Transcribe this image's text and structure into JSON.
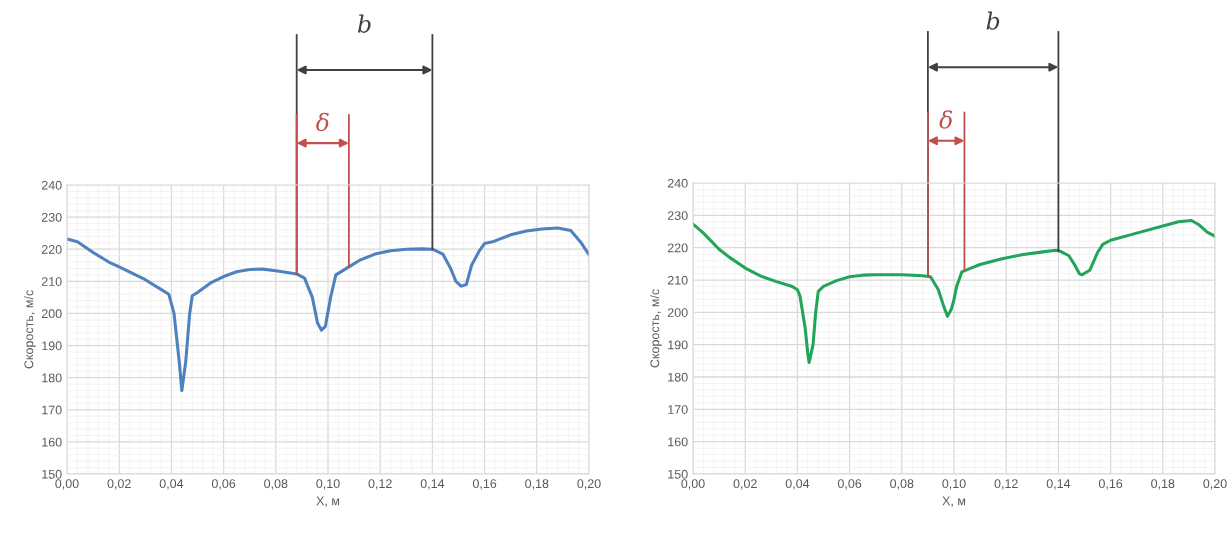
{
  "chart_data": [
    {
      "type": "line",
      "xlabel": "X, м",
      "ylabel": "Скорость, м/с",
      "grid": true,
      "legend": false,
      "marker": "none",
      "line_style": "solid",
      "xlim": [
        0,
        0.2
      ],
      "ylim": [
        150,
        240
      ],
      "xticks": [
        {
          "value": 0,
          "label": "0,00"
        },
        {
          "value": 0.02,
          "label": "0,02"
        },
        {
          "value": 0.04,
          "label": "0,04"
        },
        {
          "value": 0.06,
          "label": "0,06"
        },
        {
          "value": 0.08,
          "label": "0,08"
        },
        {
          "value": 0.1,
          "label": "0,10"
        },
        {
          "value": 0.12,
          "label": "0,12"
        },
        {
          "value": 0.14,
          "label": "0,14"
        },
        {
          "value": 0.16,
          "label": "0,16"
        },
        {
          "value": 0.18,
          "label": "0,18"
        },
        {
          "value": 0.2,
          "label": "0,20"
        }
      ],
      "yticks": [
        150,
        160,
        170,
        180,
        190,
        200,
        210,
        220,
        230,
        240
      ],
      "ref_lines": [
        {
          "axis": "x",
          "value": 0.088,
          "color": "#404040"
        },
        {
          "axis": "x",
          "value": 0.14,
          "label": "b",
          "color": "#404040"
        },
        {
          "axis": "x",
          "value": 0.088,
          "color": "#c0504d"
        },
        {
          "axis": "x",
          "value": 0.108,
          "label": "δ",
          "color": "#c0504d"
        }
      ],
      "series": [
        {
          "color": "#4f81bd",
          "x": [
            0,
            0.004,
            0.01,
            0.016,
            0.02,
            0.03,
            0.036,
            0.039,
            0.041,
            0.043,
            0.044,
            0.0455,
            0.047,
            0.048,
            0.05,
            0.055,
            0.06,
            0.065,
            0.07,
            0.075,
            0.08,
            0.085,
            0.088,
            0.091,
            0.094,
            0.096,
            0.0975,
            0.099,
            0.101,
            0.103,
            0.106,
            0.108,
            0.112,
            0.118,
            0.124,
            0.13,
            0.136,
            0.14,
            0.144,
            0.147,
            0.149,
            0.151,
            0.153,
            0.155,
            0.158,
            0.16,
            0.163,
            0.17,
            0.176,
            0.182,
            0.188,
            0.193,
            0.197,
            0.2
          ],
          "values": [
            223.2,
            222.3,
            219,
            216,
            214.5,
            210.5,
            207.5,
            206,
            200,
            185,
            176,
            185,
            200,
            205.5,
            206.5,
            209.5,
            211.5,
            213,
            213.7,
            213.8,
            213.3,
            212.7,
            212.3,
            211,
            205,
            197,
            194.8,
            196,
            205,
            212,
            213.5,
            214.5,
            216.5,
            218.5,
            219.5,
            220,
            220.1,
            220,
            218.5,
            214,
            210,
            208.5,
            209,
            215,
            219.5,
            221.8,
            222.3,
            224.5,
            225.7,
            226.3,
            226.6,
            225.8,
            222,
            218.3
          ]
        }
      ]
    },
    {
      "type": "line",
      "xlabel": "X, м",
      "ylabel": "Скорость, м/с",
      "grid": true,
      "legend": false,
      "marker": "none",
      "line_style": "solid",
      "xlim": [
        0,
        0.2
      ],
      "ylim": [
        150,
        240
      ],
      "xticks": [
        {
          "value": 0,
          "label": "0,00"
        },
        {
          "value": 0.02,
          "label": "0,02"
        },
        {
          "value": 0.04,
          "label": "0,04"
        },
        {
          "value": 0.06,
          "label": "0,06"
        },
        {
          "value": 0.08,
          "label": "0,08"
        },
        {
          "value": 0.1,
          "label": "0,10"
        },
        {
          "value": 0.12,
          "label": "0,12"
        },
        {
          "value": 0.14,
          "label": "0,14"
        },
        {
          "value": 0.16,
          "label": "0,16"
        },
        {
          "value": 0.18,
          "label": "0,18"
        },
        {
          "value": 0.2,
          "label": "0,20"
        }
      ],
      "yticks": [
        150,
        160,
        170,
        180,
        190,
        200,
        210,
        220,
        230,
        240
      ],
      "ref_lines": [
        {
          "axis": "x",
          "value": 0.09,
          "color": "#404040"
        },
        {
          "axis": "x",
          "value": 0.14,
          "label": "b",
          "color": "#404040"
        },
        {
          "axis": "x",
          "value": 0.09,
          "color": "#c0504d"
        },
        {
          "axis": "x",
          "value": 0.104,
          "label": "δ",
          "color": "#c0504d"
        }
      ],
      "series": [
        {
          "color": "#22a55a",
          "x": [
            0,
            0.004,
            0.01,
            0.014,
            0.02,
            0.026,
            0.032,
            0.038,
            0.04,
            0.041,
            0.043,
            0.044,
            0.0445,
            0.046,
            0.047,
            0.048,
            0.05,
            0.055,
            0.06,
            0.065,
            0.07,
            0.08,
            0.088,
            0.091,
            0.094,
            0.096,
            0.0975,
            0.099,
            0.1,
            0.101,
            0.103,
            0.106,
            0.11,
            0.118,
            0.126,
            0.134,
            0.139,
            0.141,
            0.144,
            0.146,
            0.148,
            0.149,
            0.152,
            0.155,
            0.157,
            0.16,
            0.17,
            0.18,
            0.186,
            0.191,
            0.194,
            0.197,
            0.2
          ],
          "values": [
            227.3,
            224.5,
            219.5,
            217,
            213.7,
            211.2,
            209.5,
            208,
            207,
            205,
            195,
            187,
            184.5,
            190,
            200,
            206.5,
            208,
            209.8,
            211,
            211.5,
            211.6,
            211.6,
            211.3,
            211,
            207,
            202,
            198.8,
            201,
            204,
            208,
            212.5,
            213.5,
            214.8,
            216.5,
            217.8,
            218.7,
            219.2,
            218.8,
            217.5,
            215,
            212,
            211.6,
            213,
            218.5,
            221,
            222.3,
            224.5,
            226.7,
            228,
            228.4,
            227,
            224.8,
            223.5
          ]
        }
      ]
    }
  ]
}
